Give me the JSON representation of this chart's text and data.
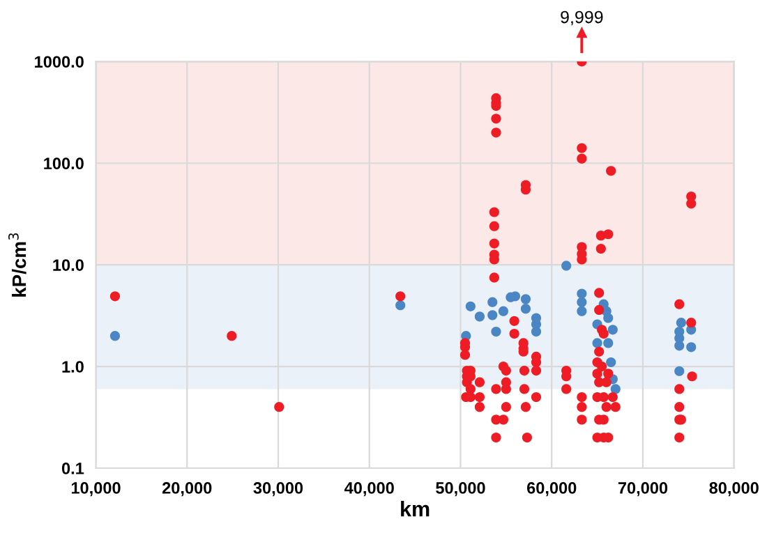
{
  "chart_data": {
    "type": "scatter",
    "xlabel": "km",
    "ylabel": "kP/cm$^{3}$",
    "log": "y",
    "grid": true,
    "legend": false,
    "marker": "circle",
    "xlim": [
      10000,
      80000
    ],
    "xticks": [
      {
        "value": 10000,
        "label": "10,000"
      },
      {
        "value": 20000,
        "label": "20,000"
      },
      {
        "value": 30000,
        "label": "30,000"
      },
      {
        "value": 40000,
        "label": "40,000"
      },
      {
        "value": 50000,
        "label": "50,000"
      },
      {
        "value": 60000,
        "label": "60,000"
      },
      {
        "value": 70000,
        "label": "70,000"
      },
      {
        "value": 80000,
        "label": "80,000"
      }
    ],
    "ylim": [
      0.1,
      1000
    ],
    "yticks": [
      {
        "value": 0.1,
        "label": "0.1"
      },
      {
        "value": 1,
        "label": "1.0"
      },
      {
        "value": 10,
        "label": "10.0"
      },
      {
        "value": 100,
        "label": "100.0"
      },
      {
        "value": 1000,
        "label": "1000.0"
      }
    ],
    "bands": [
      {
        "axis": "y",
        "from": 10,
        "to": 1000,
        "color": "#fde8e8"
      },
      {
        "axis": "y",
        "from": 0.6,
        "to": 10,
        "color": "#ebf1f9"
      }
    ],
    "annotations": [
      {
        "text": "9,999",
        "x": 63300,
        "y": 1000
      }
    ],
    "series": [
      {
        "color": "#4a86c4",
        "x": [
          12100,
          43400,
          61600,
          50600,
          51100,
          52100,
          53500,
          53500,
          53900,
          54700,
          55500,
          56000,
          57150,
          57150,
          58300,
          58300,
          58300,
          63300,
          63300,
          63300,
          65700,
          66000,
          66200,
          65000,
          66700,
          65000,
          66500,
          66700,
          67000,
          66200,
          74000,
          74000,
          74000,
          74000,
          74200,
          75300,
          75300
        ],
        "values": [
          2.0,
          4.0,
          9.8,
          2.0,
          3.9,
          3.1,
          4.3,
          3.2,
          2.2,
          3.5,
          4.8,
          4.9,
          4.6,
          3.7,
          3.0,
          2.6,
          2.2,
          5.2,
          4.3,
          3.5,
          4.1,
          3.5,
          3.0,
          2.6,
          2.3,
          1.7,
          1.1,
          0.75,
          0.6,
          1.7,
          2.2,
          1.9,
          1.6,
          0.9,
          2.7,
          2.3,
          1.55
        ]
      },
      {
        "color": "#ee1c25",
        "x": [
          12100,
          24900,
          30100,
          43400,
          50500,
          50500,
          50500,
          50700,
          50700,
          50700,
          51100,
          50600,
          51100,
          51100,
          51100,
          52100,
          52100,
          52100,
          53900,
          53900,
          53900,
          53900,
          53900,
          53700,
          53700,
          53700,
          53700,
          53700,
          53700,
          53900,
          53900,
          54700,
          53900,
          54700,
          55000,
          55000,
          55000,
          55000,
          55900,
          55900,
          57150,
          57150,
          56900,
          56900,
          56900,
          57000,
          57000,
          57150,
          57300,
          58300,
          58300,
          58300,
          58300,
          61600,
          61600,
          61600,
          63300,
          63300,
          63300,
          63300,
          63300,
          63300,
          63300,
          63300,
          63300,
          65400,
          66200,
          65400,
          66500,
          65200,
          65200,
          65500,
          65700,
          65200,
          65000,
          65500,
          65000,
          66200,
          65200,
          66000,
          65000,
          65700,
          66700,
          67000,
          66000,
          65200,
          65700,
          65000,
          65700,
          66200,
          74000,
          74000,
          74000,
          74000,
          74200,
          74000,
          75300,
          75300,
          75300,
          75400
        ],
        "values": [
          4.9,
          2.0,
          0.4,
          4.9,
          1.7,
          1.55,
          1.3,
          0.91,
          0.8,
          0.7,
          0.6,
          0.5,
          0.5,
          0.91,
          0.8,
          0.7,
          0.5,
          0.4,
          436,
          392,
          366,
          274,
          200,
          33,
          24,
          16.2,
          12.6,
          11.3,
          7.5,
          0.6,
          0.3,
          0.3,
          0.2,
          1.0,
          0.91,
          0.7,
          0.6,
          0.4,
          2.8,
          2.1,
          61,
          55,
          1.7,
          1.5,
          1.4,
          0.91,
          0.6,
          0.4,
          0.2,
          1.25,
          1.1,
          0.91,
          0.5,
          0.91,
          0.8,
          0.6,
          1000,
          141,
          111,
          15,
          12.8,
          11.3,
          0.5,
          0.4,
          0.3,
          19.4,
          20,
          14.4,
          84,
          5.3,
          3.6,
          2.3,
          2.1,
          1.4,
          1.1,
          1.0,
          0.85,
          0.85,
          0.7,
          0.7,
          0.5,
          0.5,
          0.5,
          0.4,
          0.4,
          0.3,
          0.3,
          0.2,
          0.2,
          0.2,
          4.1,
          0.6,
          0.4,
          0.3,
          0.3,
          0.2,
          47,
          40,
          2.7,
          0.8
        ]
      }
    ]
  }
}
